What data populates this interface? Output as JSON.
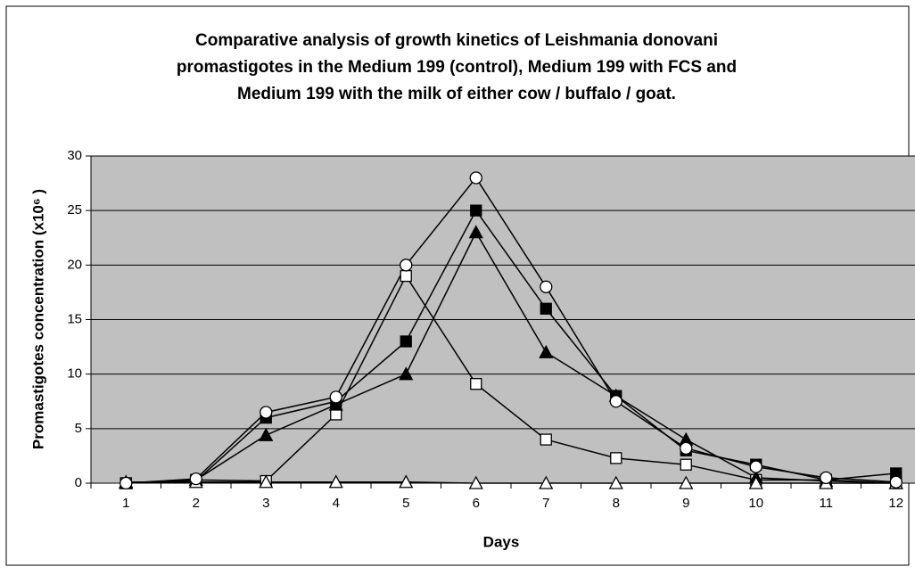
{
  "chart_data": {
    "type": "line",
    "title": [
      "Comparative analysis of growth kinetics of Leishmania donovani",
      "promastigotes in the Medium 199 (control), Medium 199 with FCS and",
      "Medium 199 with the milk of either cow / buffalo / goat."
    ],
    "x_label": "Days",
    "y_label": "Promastigotes concentration (x10⁶ )",
    "categories": [
      "1",
      "2",
      "3",
      "4",
      "5",
      "6",
      "7",
      "8",
      "9",
      "10",
      "11",
      "12"
    ],
    "ylim": [
      0,
      30
    ],
    "yticks": [
      0,
      5,
      10,
      15,
      20,
      25,
      30
    ],
    "grid": true,
    "plot_background": "#c0c0c0",
    "series": [
      {
        "marker": "square",
        "color": "#000000",
        "marker_fill": "#000000",
        "values": [
          0,
          0.2,
          6,
          7.5,
          13,
          25,
          16,
          8,
          3,
          1.7,
          0.3,
          0.9
        ]
      },
      {
        "marker": "square",
        "color": "#000000",
        "marker_fill": "#ffffff",
        "values": [
          0,
          0.3,
          0.2,
          6.3,
          19,
          9.1,
          4,
          2.3,
          1.7,
          0.3,
          0.3,
          0
        ]
      },
      {
        "marker": "triangle",
        "color": "#000000",
        "marker_fill": "#000000",
        "values": [
          0,
          0.3,
          4.4,
          7.2,
          10,
          23,
          12,
          8,
          4,
          0.5,
          0.2,
          0
        ]
      },
      {
        "marker": "triangle",
        "color": "#000000",
        "marker_fill": "#ffffff",
        "values": [
          0.1,
          0.1,
          0.1,
          0.1,
          0.1,
          0,
          0,
          0,
          0,
          0,
          0,
          0
        ]
      },
      {
        "marker": "circle",
        "color": "#000000",
        "marker_fill": "#ffffff",
        "values": [
          0,
          0.4,
          6.5,
          7.9,
          20,
          28,
          18,
          7.5,
          3.2,
          1.5,
          0.5,
          0.1
        ]
      }
    ]
  }
}
